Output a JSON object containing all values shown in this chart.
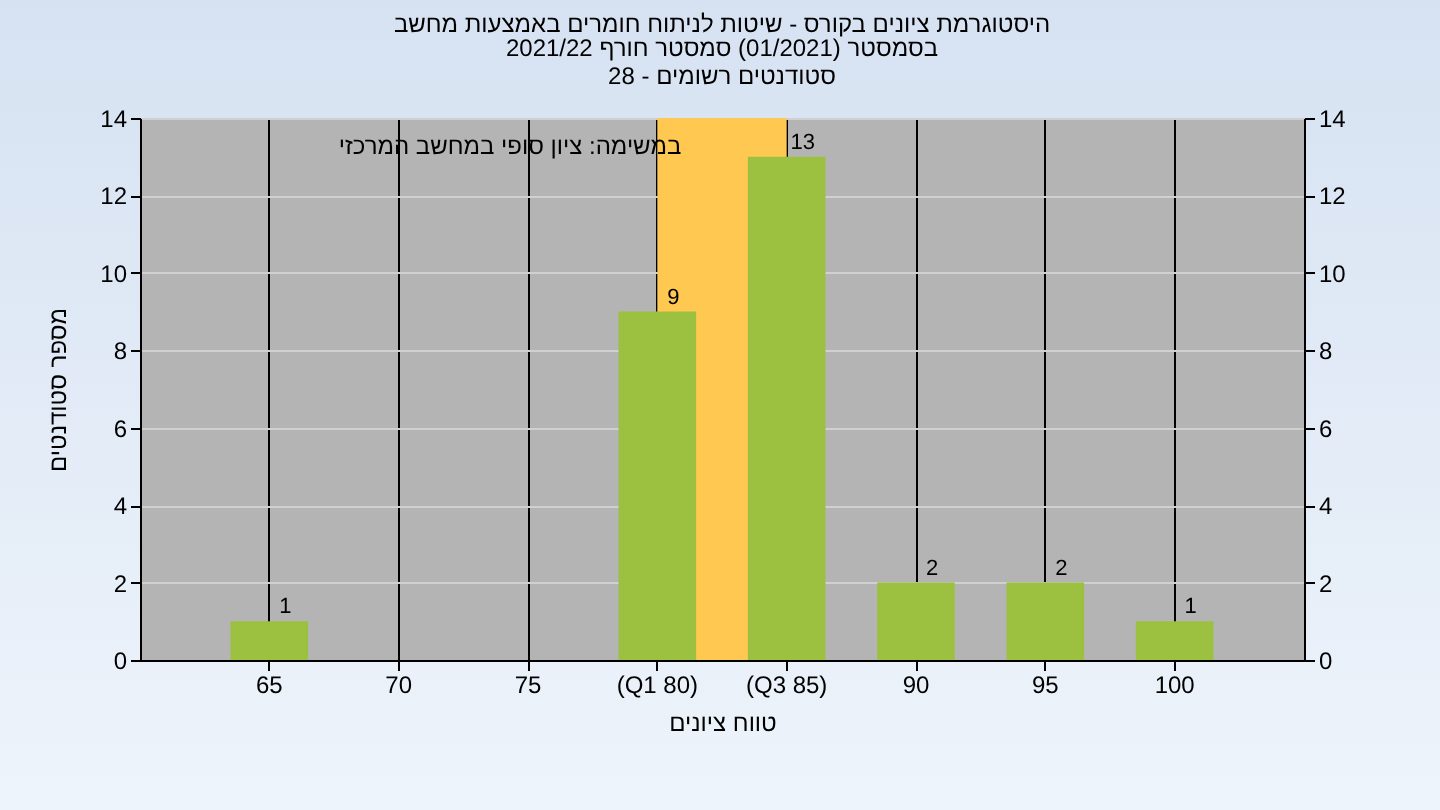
{
  "chart_data": {
    "type": "bar",
    "title": "היסטוגרמת ציונים בקורס - שיטות לניתוח חומרים באמצעות מחשב",
    "subtitle": "בסמסטר  (01/2021)  סמסטר חורף 2021/22\nסטודנטים רשומים - 28",
    "xlabel": "טווח ציונים",
    "ylabel": "מספר סטודנטים",
    "annotations": [
      "במשימה: ציון סופי במחשב המרכזי"
    ],
    "categories": [
      "65",
      "70",
      "75",
      "(Q1 80)",
      "(Q3 85)",
      "90",
      "95",
      "100"
    ],
    "series": [
      {
        "color": "#9cc040",
        "values": [
          1,
          0,
          0,
          9,
          13,
          2,
          2,
          1
        ],
        "value_labels": [
          "1",
          null,
          null,
          "9",
          "13",
          "2",
          "2",
          "1"
        ]
      }
    ],
    "bands": [
      {
        "axis": "x",
        "from": "(Q1 80)",
        "to": "(Q3 85)",
        "color": "#ffc850"
      }
    ],
    "ylim": [
      0,
      14
    ],
    "yticks": [
      0,
      2,
      4,
      6,
      8,
      10,
      12,
      14
    ],
    "y2lim": [
      0,
      14
    ],
    "y2ticks": [
      0,
      2,
      4,
      6,
      8,
      10,
      12,
      14
    ],
    "grid": true
  }
}
